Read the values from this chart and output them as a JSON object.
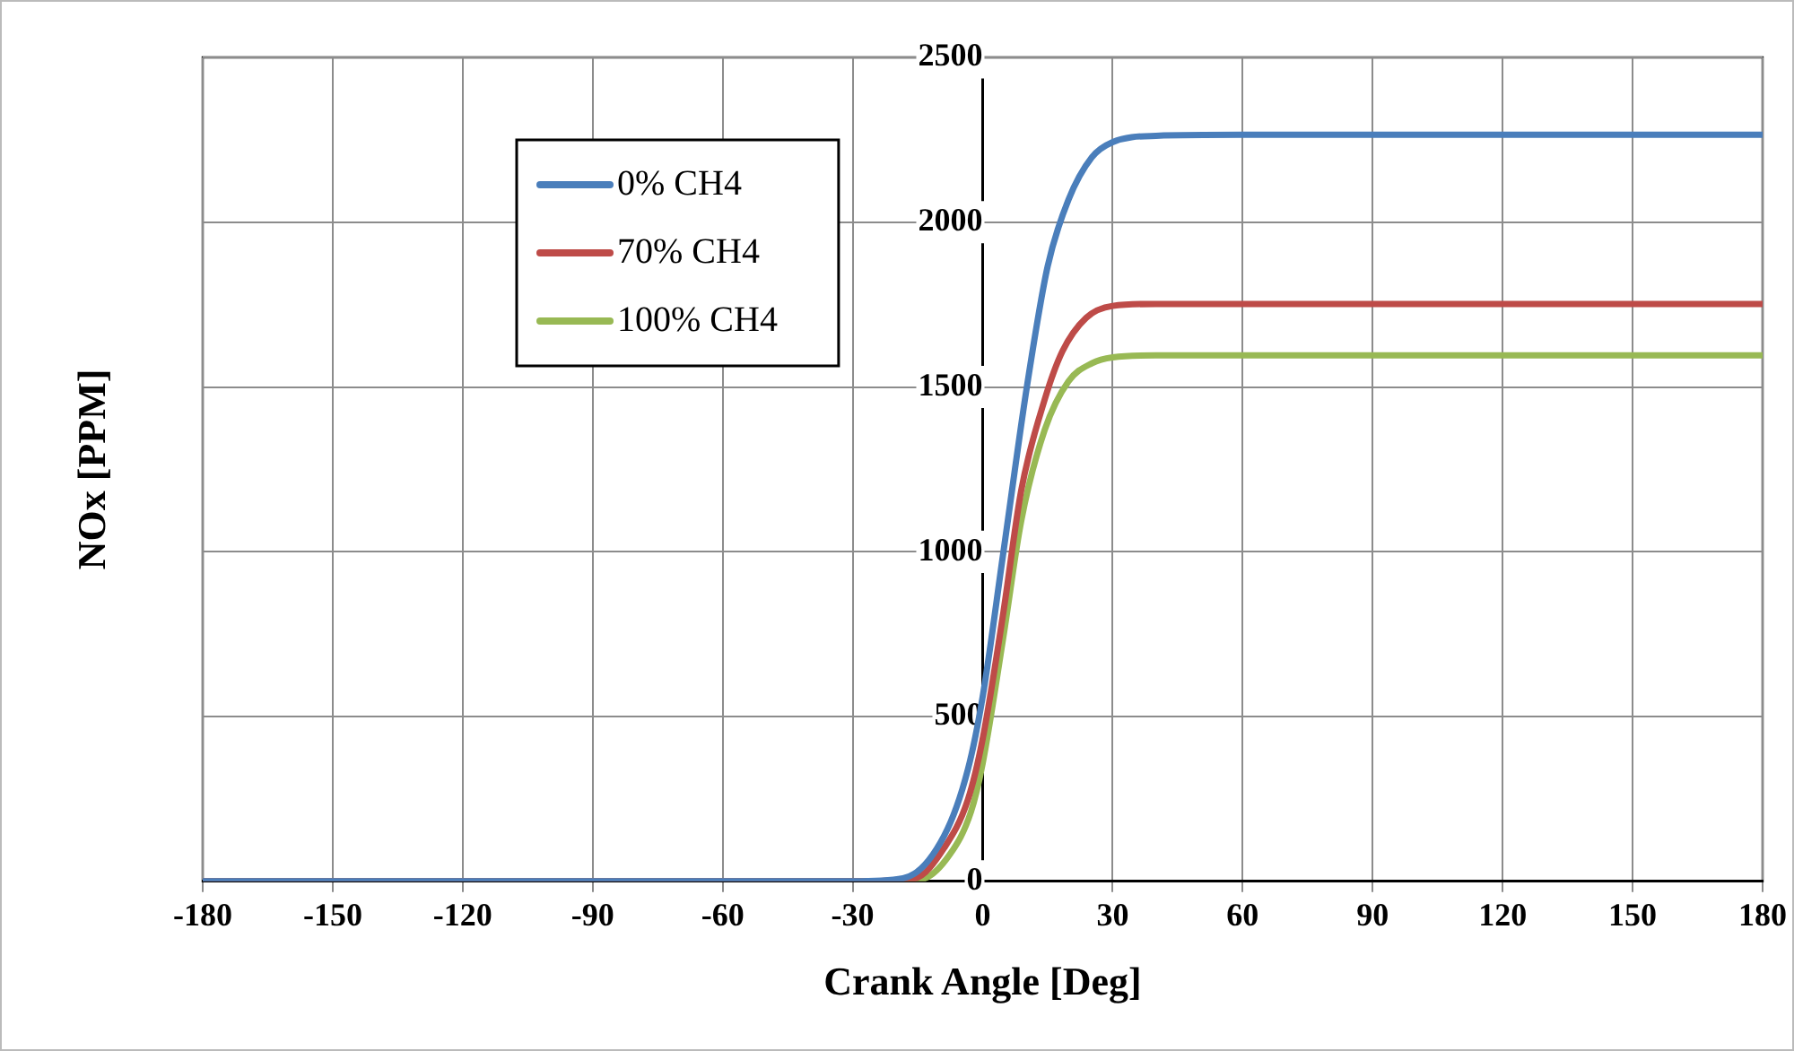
{
  "chart_data": {
    "type": "line",
    "xlabel": "Crank Angle [Deg]",
    "ylabel": "NOx [PPM]",
    "xlim": [
      -180,
      180
    ],
    "xticks": [
      -180,
      -150,
      -120,
      -90,
      -60,
      -30,
      0,
      30,
      60,
      90,
      120,
      150,
      180
    ],
    "ylim": [
      0,
      2500
    ],
    "yticks": [
      0,
      500,
      1000,
      1500,
      2000,
      2500
    ],
    "grid": true,
    "legend": "top left",
    "marker": "none",
    "line_style": "solid",
    "series": [
      {
        "name": "0% CH4",
        "color": "#4a7ebb",
        "x": [
          -180,
          -30,
          -18.4,
          -8.9,
          -3.4,
          0,
          4.8,
          10.2,
          15,
          19.8,
          25.2,
          30,
          40,
          60,
          180
        ],
        "values": [
          0,
          0,
          9,
          138,
          340,
          560,
          1000,
          1500,
          1866,
          2068,
          2197,
          2243,
          2262,
          2265,
          2265
        ]
      },
      {
        "name": "70% CH4",
        "color": "#be4b48",
        "x": [
          -180,
          -30,
          -15.7,
          -8.9,
          -3.4,
          0,
          4.8,
          8.9,
          14.3,
          18.4,
          23.9,
          30,
          40,
          60,
          180
        ],
        "values": [
          0,
          0,
          9,
          101,
          248,
          432,
          818,
          1186,
          1461,
          1608,
          1710,
          1746,
          1752,
          1752,
          1752
        ]
      },
      {
        "name": "100% CH4",
        "color": "#98b954",
        "x": [
          -180,
          -30,
          -14.3,
          -7.5,
          -2.7,
          0,
          4.8,
          8.9,
          14.3,
          19.8,
          25.2,
          30,
          40,
          60,
          180
        ],
        "values": [
          0,
          0,
          6,
          83,
          211,
          358,
          744,
          1094,
          1369,
          1517,
          1572,
          1590,
          1596,
          1596,
          1596
        ]
      }
    ]
  }
}
